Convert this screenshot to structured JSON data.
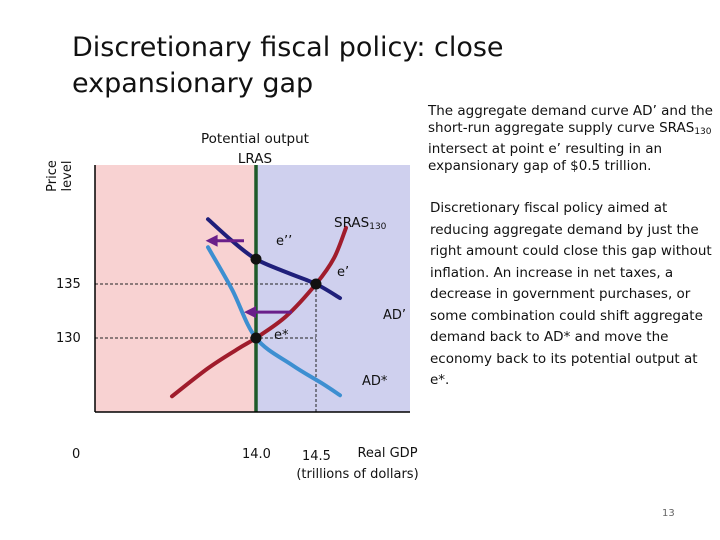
{
  "slide": {
    "title": "Discretionary fiscal policy: close expansionary gap",
    "page_number": "13",
    "summary": {
      "part1": "The aggregate demand curve AD’ and the short-run aggregate supply curve SRAS",
      "sub": "130",
      "part2": " intersect at point e’ resulting in an expansionary gap of $0.5 trillion."
    },
    "policy_text": "Discretionary fiscal policy aimed at reducing aggregate demand by just the right amount could close this gap without inflation. An increase in net taxes, a decrease in government purchases, or some combination could shift aggregate demand back to AD* and move the economy back to its potential output at e*."
  },
  "chart_data": {
    "type": "line",
    "title": "",
    "ylabel_line1": "Price",
    "ylabel_line2": "level",
    "xlabel_line1": "Real GDP",
    "xlabel_line2": "(trillions of dollars)",
    "x_origin_label": "0",
    "x_ticks": [
      {
        "value": 14.0,
        "label": "14.0"
      },
      {
        "value": 14.5,
        "label": "14.5"
      }
    ],
    "y_ticks": [
      {
        "value": 135,
        "label": "135"
      },
      {
        "value": 130,
        "label": "130"
      }
    ],
    "lras": {
      "x": 14.0,
      "label_line1": "Potential output",
      "label_line2": "LRAS",
      "color": "#1f5a2a"
    },
    "regions": [
      {
        "name": "left-of-potential",
        "color": "#f8d2d2"
      },
      {
        "name": "right-of-potential",
        "color": "#cfd0ee"
      }
    ],
    "series": [
      {
        "name": "SRAS130",
        "label": "SRAS",
        "label_sub": "130",
        "color": "#a01c2c",
        "points": [
          [
            13.3,
            124.6
          ],
          [
            13.6,
            127.2
          ],
          [
            13.85,
            129.0
          ],
          [
            14.0,
            130.0
          ],
          [
            14.25,
            132.0
          ],
          [
            14.5,
            135.0
          ],
          [
            14.65,
            137.4
          ],
          [
            14.75,
            140.2
          ]
        ]
      },
      {
        "name": "AD'",
        "label": "AD’",
        "color": "#1f1f7a",
        "points": [
          [
            13.6,
            141.0
          ],
          [
            13.8,
            139.0
          ],
          [
            14.0,
            137.3
          ],
          [
            14.25,
            136.1
          ],
          [
            14.5,
            135.0
          ],
          [
            14.7,
            133.7
          ]
        ]
      },
      {
        "name": "AD*",
        "label": "AD*",
        "color": "#3d8fd1",
        "points": [
          [
            13.6,
            138.4
          ],
          [
            13.8,
            134.5
          ],
          [
            14.0,
            130.0
          ],
          [
            14.3,
            127.5
          ],
          [
            14.55,
            125.8
          ],
          [
            14.7,
            124.7
          ]
        ]
      }
    ],
    "points": [
      {
        "name": "e''",
        "label": "e’’",
        "x": 14.0,
        "y": 137.3
      },
      {
        "name": "e'",
        "label": "e’",
        "x": 14.5,
        "y": 135.0
      },
      {
        "name": "e*",
        "label": "e*",
        "x": 14.0,
        "y": 130.0
      }
    ],
    "arrows": [
      {
        "name": "ad-shift-arrow-upper",
        "from": [
          13.9,
          139.0
        ],
        "to": [
          13.58,
          139.0
        ],
        "color": "#6a1f8a"
      },
      {
        "name": "ad-shift-arrow-lower",
        "from": [
          14.3,
          132.4
        ],
        "to": [
          13.9,
          132.4
        ],
        "color": "#6a1f8a"
      }
    ]
  }
}
